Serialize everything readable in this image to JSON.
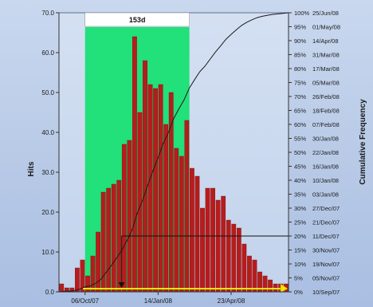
{
  "chart_data": {
    "type": "bar",
    "y_label": "Hits",
    "y_ticks": [
      {
        "value": 0,
        "label": "0.0"
      },
      {
        "value": 10,
        "label": "10.0"
      },
      {
        "value": 20,
        "label": "20.0"
      },
      {
        "value": 30,
        "label": "30.0"
      },
      {
        "value": 40,
        "label": "40.0"
      },
      {
        "value": 50,
        "label": "50.0"
      },
      {
        "value": 60,
        "label": "60.0"
      },
      {
        "value": 70,
        "label": "70.0"
      }
    ],
    "ylim": [
      0,
      70
    ],
    "x_ticks": [
      {
        "label": "06/Oct/07",
        "bin": 5
      },
      {
        "label": "14/Jan/08",
        "bin": 19
      },
      {
        "label": "23/Apr/08",
        "bin": 33
      }
    ],
    "bin_count": 44,
    "values": [
      2,
      1,
      1,
      6,
      8,
      4,
      9,
      15,
      25,
      26,
      27,
      28,
      37,
      38,
      64,
      45,
      58,
      52,
      51,
      52,
      42,
      50,
      36,
      34,
      43,
      31,
      29,
      21,
      26,
      26,
      23,
      24,
      18,
      17,
      16,
      12,
      9,
      8,
      5,
      4,
      3,
      2,
      2,
      2
    ],
    "bar_color": "#b71c1c",
    "range_highlight": {
      "label": "153d",
      "start_bin": 5,
      "end_bin": 25,
      "color": "#22e07a"
    },
    "secondary_axis": {
      "label": "Cumulative Frequency",
      "ticks": [
        {
          "percent": 0,
          "percent_label": "0%",
          "date": "10/Sep/07"
        },
        {
          "percent": 5,
          "percent_label": "5%",
          "date": "05/Nov/07"
        },
        {
          "percent": 10,
          "percent_label": "10%",
          "date": "19/Nov/07"
        },
        {
          "percent": 15,
          "percent_label": "15%",
          "date": "30/Nov/07"
        },
        {
          "percent": 20,
          "percent_label": "20%",
          "date": "11/Dec/07"
        },
        {
          "percent": 25,
          "percent_label": "25%",
          "date": "21/Dec/07"
        },
        {
          "percent": 30,
          "percent_label": "30%",
          "date": "27/Dec/07"
        },
        {
          "percent": 35,
          "percent_label": "35%",
          "date": "03/Jan/08"
        },
        {
          "percent": 40,
          "percent_label": "40%",
          "date": "10/Jan/08"
        },
        {
          "percent": 45,
          "percent_label": "45%",
          "date": "16/Jan/08"
        },
        {
          "percent": 50,
          "percent_label": "50%",
          "date": "22/Jan/08"
        },
        {
          "percent": 55,
          "percent_label": "55%",
          "date": "30/Jan/08"
        },
        {
          "percent": 60,
          "percent_label": "60%",
          "date": "07/Feb/08"
        },
        {
          "percent": 65,
          "percent_label": "65%",
          "date": "18/Feb/08"
        },
        {
          "percent": 70,
          "percent_label": "70%",
          "date": "26/Feb/08"
        },
        {
          "percent": 75,
          "percent_label": "75%",
          "date": "05/Mar/08"
        },
        {
          "percent": 80,
          "percent_label": "80%",
          "date": "17/Mar/08"
        },
        {
          "percent": 85,
          "percent_label": "85%",
          "date": "31/Mar/08"
        },
        {
          "percent": 90,
          "percent_label": "90%",
          "date": "14/Apr/08"
        },
        {
          "percent": 95,
          "percent_label": "95%",
          "date": "01/May/08"
        },
        {
          "percent": 100,
          "percent_label": "100%",
          "date": "25/Jun/08"
        }
      ]
    },
    "cumulative_curve_color": "#1a1a1a",
    "marker_percent": 20,
    "marker_bin": 12,
    "grid": false
  }
}
